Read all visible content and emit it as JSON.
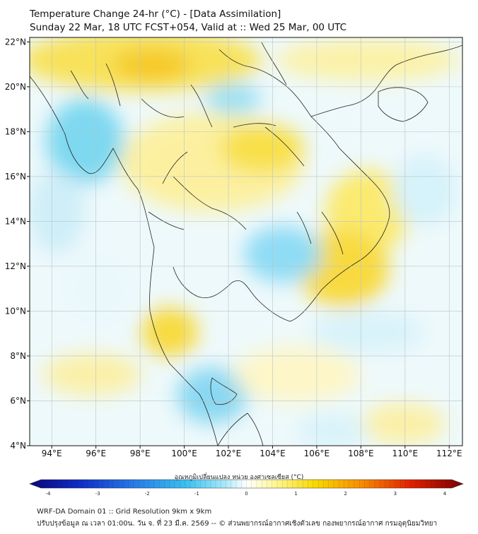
{
  "header": {
    "title": "Temperature Change 24-hr (°C) - [Data Assimilation]",
    "subtitle": "Sunday 22 Mar, 18 UTC FCST+054, Valid at :: Wed 25 Mar, 00 UTC"
  },
  "map": {
    "lat_ticks": [
      {
        "value": 22,
        "label": "22°N"
      },
      {
        "value": 20,
        "label": "20°N"
      },
      {
        "value": 18,
        "label": "18°N"
      },
      {
        "value": 16,
        "label": "16°N"
      },
      {
        "value": 14,
        "label": "14°N"
      },
      {
        "value": 12,
        "label": "12°N"
      },
      {
        "value": 10,
        "label": "10°N"
      },
      {
        "value": 8,
        "label": "8°N"
      },
      {
        "value": 6,
        "label": "6°N"
      },
      {
        "value": 4,
        "label": "4°N"
      }
    ],
    "lon_ticks": [
      {
        "value": 94,
        "label": "94°E"
      },
      {
        "value": 96,
        "label": "96°E"
      },
      {
        "value": 98,
        "label": "98°E"
      },
      {
        "value": 100,
        "label": "100°E"
      },
      {
        "value": 102,
        "label": "102°E"
      },
      {
        "value": 104,
        "label": "104°E"
      },
      {
        "value": 106,
        "label": "106°E"
      },
      {
        "value": 108,
        "label": "108°E"
      },
      {
        "value": 110,
        "label": "110°E"
      },
      {
        "value": 112,
        "label": "112°E"
      }
    ],
    "lat_range": [
      4,
      22.2
    ],
    "lon_range": [
      93,
      112.6
    ],
    "grid": true
  },
  "colorbar": {
    "title": "อุณหภูมิเปลี่ยนแปลง หน่วย องศาเซลเซียส (°C)",
    "range": [
      -4,
      4
    ],
    "ticks": [
      "-4",
      "-3",
      "-2",
      "-1",
      "0",
      "1",
      "2",
      "3",
      "4"
    ],
    "colors": [
      "#08087a",
      "#1030c8",
      "#2a80e8",
      "#38c0f0",
      "#a8e8f8",
      "#ffffff",
      "#fff8a0",
      "#f8d800",
      "#f89000",
      "#e02000",
      "#7a0000"
    ]
  },
  "footer": {
    "line1": "WRF-DA Domain 01 :: Grid Resolution 9km x 9km",
    "line2": "ปรับปรุงข้อมูล ณ เวลา 01:00น. วัน จ. ที่ 23 มี.ค. 2569 -- © ส่วนพยากรณ์อากาศเชิงตัวเลข กองพยากรณ์อากาศ กรมอุตุนิยมวิทยา"
  }
}
